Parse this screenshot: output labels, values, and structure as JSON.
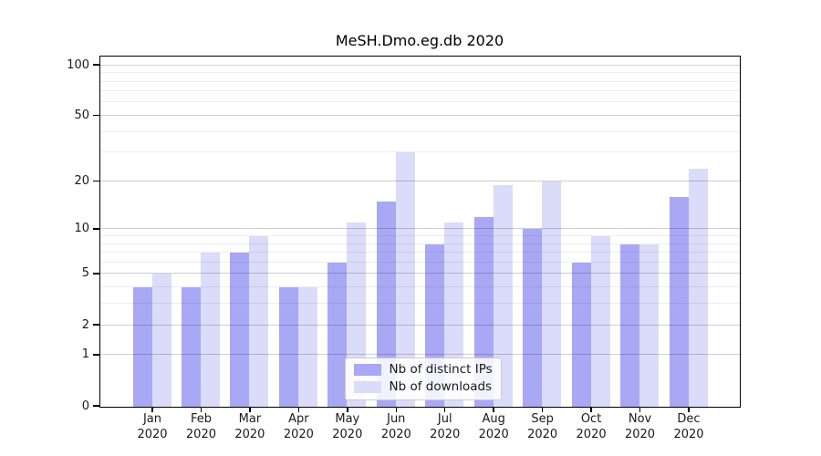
{
  "chart_data": {
    "type": "bar",
    "title": "MeSH.Dmo.eg.db 2020",
    "categories": [
      "Jan",
      "Feb",
      "Mar",
      "Apr",
      "May",
      "Jun",
      "Jul",
      "Aug",
      "Sep",
      "Oct",
      "Nov",
      "Dec"
    ],
    "category_year": "2020",
    "series": [
      {
        "name": "Nb of distinct IPs",
        "color": "#a8a8f5",
        "values": [
          4,
          4,
          7,
          4,
          6,
          15,
          8,
          12,
          10,
          6,
          8,
          16
        ]
      },
      {
        "name": "Nb of downloads",
        "color": "#dbdbfa",
        "values": [
          5,
          7,
          9,
          4,
          11,
          30,
          11,
          19,
          20,
          9,
          8,
          24
        ]
      }
    ],
    "yscale": "log1p",
    "yticks": [
      0,
      1,
      2,
      5,
      10,
      20,
      50,
      100
    ],
    "yticks_minor": [
      3,
      4,
      6,
      7,
      8,
      9,
      30,
      40,
      60,
      70,
      80,
      90
    ],
    "ylim": [
      0,
      112
    ],
    "xlabel": "",
    "ylabel": "",
    "grid": "horizontal-major-and-minor",
    "legend_position": "lower center"
  }
}
